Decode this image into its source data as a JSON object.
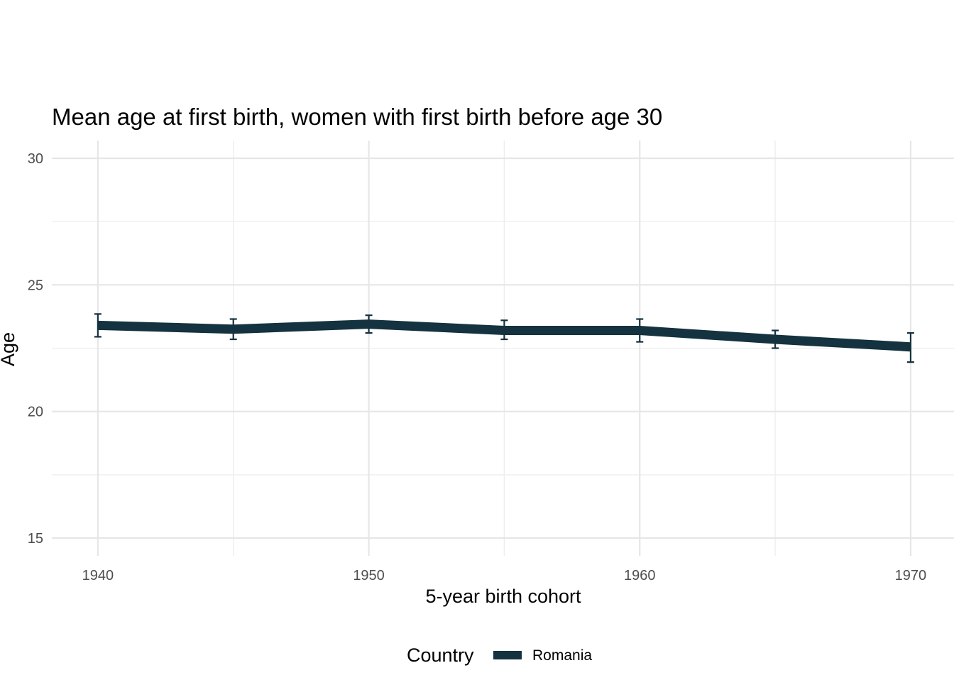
{
  "chart_data": {
    "type": "line",
    "title": "Mean age at first birth, women with first birth before age 30",
    "xlabel": "5-year birth cohort",
    "ylabel": "Age",
    "xlim": [
      1938.3,
      1971.6
    ],
    "ylim": [
      14.3,
      30.7
    ],
    "x_ticks": [
      1940,
      1950,
      1960,
      1970
    ],
    "x_tick_labels": [
      "1940",
      "1950",
      "1960",
      "1970"
    ],
    "x_minor": [
      1945,
      1955,
      1965
    ],
    "y_ticks": [
      15,
      20,
      25,
      30
    ],
    "y_tick_labels": [
      "15",
      "20",
      "25",
      "30"
    ],
    "y_minor": [
      17.5,
      22.5,
      27.5
    ],
    "grid": true,
    "legend": {
      "title": "Country",
      "position": "bottom",
      "entries": [
        "Romania"
      ]
    },
    "series": [
      {
        "name": "Romania",
        "color": "#14323f",
        "x": [
          1940,
          1945,
          1950,
          1955,
          1960,
          1965,
          1970
        ],
        "values": [
          23.4,
          23.25,
          23.45,
          23.2,
          23.2,
          22.85,
          22.55
        ],
        "error_low": [
          22.95,
          22.85,
          23.1,
          22.85,
          22.75,
          22.5,
          21.95
        ],
        "error_high": [
          23.85,
          23.65,
          23.8,
          23.6,
          23.65,
          23.2,
          23.1
        ]
      }
    ]
  }
}
